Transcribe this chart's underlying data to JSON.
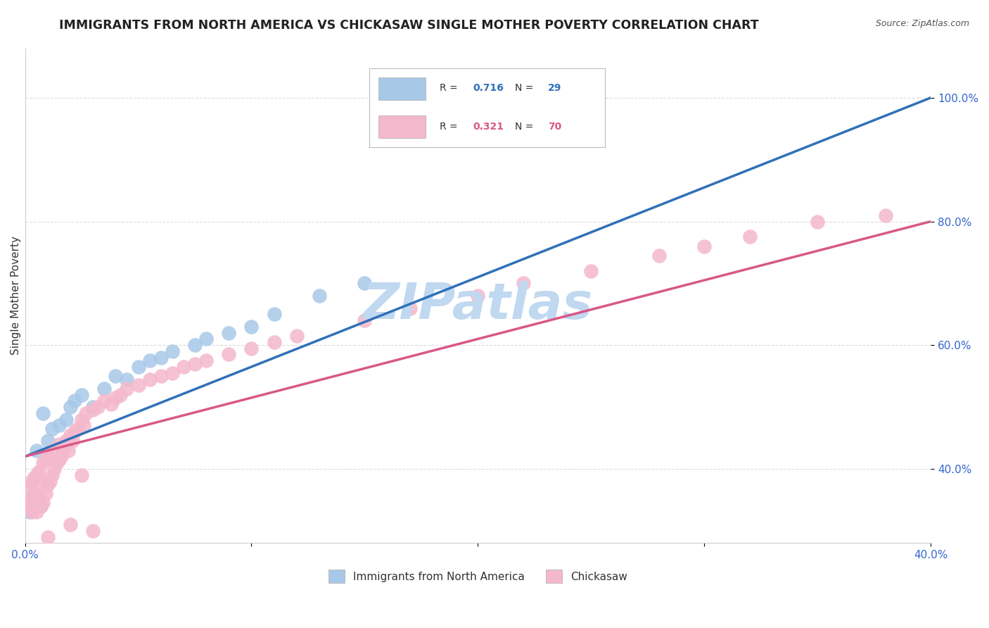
{
  "title": "IMMIGRANTS FROM NORTH AMERICA VS CHICKASAW SINGLE MOTHER POVERTY CORRELATION CHART",
  "source_text": "Source: ZipAtlas.com",
  "watermark": "ZIPatlas",
  "ylabel": "Single Mother Poverty",
  "xlim": [
    0.0,
    0.4
  ],
  "ylim": [
    0.28,
    1.08
  ],
  "xtick_positions": [
    0.0,
    0.1,
    0.2,
    0.3,
    0.4
  ],
  "xticklabels": [
    "0.0%",
    "",
    "",
    "",
    "40.0%"
  ],
  "ytick_positions": [
    0.4,
    0.6,
    0.8,
    1.0
  ],
  "ytick_labels": [
    "40.0%",
    "60.0%",
    "80.0%",
    "100.0%"
  ],
  "blue_R": 0.716,
  "blue_N": 29,
  "pink_R": 0.321,
  "pink_N": 70,
  "blue_color": "#a8c8e8",
  "pink_color": "#f4b8cc",
  "blue_line_color": "#3070b8",
  "pink_line_color": "#d85888",
  "legend_label_blue": "Immigrants from North America",
  "legend_label_pink": "Chickasaw",
  "blue_points_x": [
    0.002,
    0.003,
    0.004,
    0.005,
    0.005,
    0.007,
    0.008,
    0.01,
    0.012,
    0.015,
    0.018,
    0.02,
    0.022,
    0.025,
    0.03,
    0.035,
    0.04,
    0.045,
    0.05,
    0.055,
    0.06,
    0.065,
    0.075,
    0.08,
    0.09,
    0.1,
    0.11,
    0.13,
    0.15
  ],
  "blue_points_y": [
    0.33,
    0.34,
    0.36,
    0.35,
    0.43,
    0.34,
    0.49,
    0.445,
    0.465,
    0.47,
    0.48,
    0.5,
    0.51,
    0.52,
    0.5,
    0.53,
    0.55,
    0.545,
    0.565,
    0.575,
    0.58,
    0.59,
    0.6,
    0.61,
    0.62,
    0.63,
    0.65,
    0.68,
    0.7
  ],
  "pink_points_x": [
    0.001,
    0.002,
    0.002,
    0.003,
    0.003,
    0.004,
    0.004,
    0.005,
    0.005,
    0.005,
    0.006,
    0.006,
    0.007,
    0.007,
    0.008,
    0.008,
    0.009,
    0.009,
    0.01,
    0.01,
    0.011,
    0.012,
    0.012,
    0.013,
    0.014,
    0.015,
    0.015,
    0.016,
    0.017,
    0.018,
    0.019,
    0.02,
    0.021,
    0.022,
    0.023,
    0.025,
    0.026,
    0.027,
    0.03,
    0.032,
    0.035,
    0.038,
    0.04,
    0.042,
    0.045,
    0.05,
    0.055,
    0.06,
    0.065,
    0.07,
    0.075,
    0.08,
    0.09,
    0.1,
    0.11,
    0.12,
    0.15,
    0.17,
    0.2,
    0.22,
    0.25,
    0.28,
    0.3,
    0.32,
    0.35,
    0.38,
    0.01,
    0.02,
    0.025,
    0.03
  ],
  "pink_points_y": [
    0.35,
    0.34,
    0.37,
    0.33,
    0.38,
    0.355,
    0.385,
    0.33,
    0.36,
    0.39,
    0.355,
    0.395,
    0.34,
    0.38,
    0.345,
    0.41,
    0.36,
    0.415,
    0.375,
    0.42,
    0.38,
    0.39,
    0.43,
    0.4,
    0.41,
    0.415,
    0.44,
    0.42,
    0.435,
    0.445,
    0.43,
    0.455,
    0.445,
    0.46,
    0.465,
    0.48,
    0.47,
    0.49,
    0.495,
    0.5,
    0.51,
    0.505,
    0.515,
    0.52,
    0.53,
    0.535,
    0.545,
    0.55,
    0.555,
    0.565,
    0.57,
    0.575,
    0.585,
    0.595,
    0.605,
    0.615,
    0.64,
    0.66,
    0.68,
    0.7,
    0.72,
    0.745,
    0.76,
    0.775,
    0.8,
    0.81,
    0.29,
    0.31,
    0.39,
    0.3
  ],
  "title_fontsize": 12.5,
  "axis_label_fontsize": 11,
  "tick_fontsize": 11,
  "watermark_fontsize": 52,
  "watermark_color": "#c0d8f0",
  "background_color": "#ffffff",
  "grid_color": "#cccccc",
  "grid_linestyle": "--",
  "grid_alpha": 0.7,
  "blue_line_intercept": 0.42,
  "blue_line_slope": 1.45,
  "pink_line_intercept": 0.42,
  "pink_line_slope": 0.95
}
